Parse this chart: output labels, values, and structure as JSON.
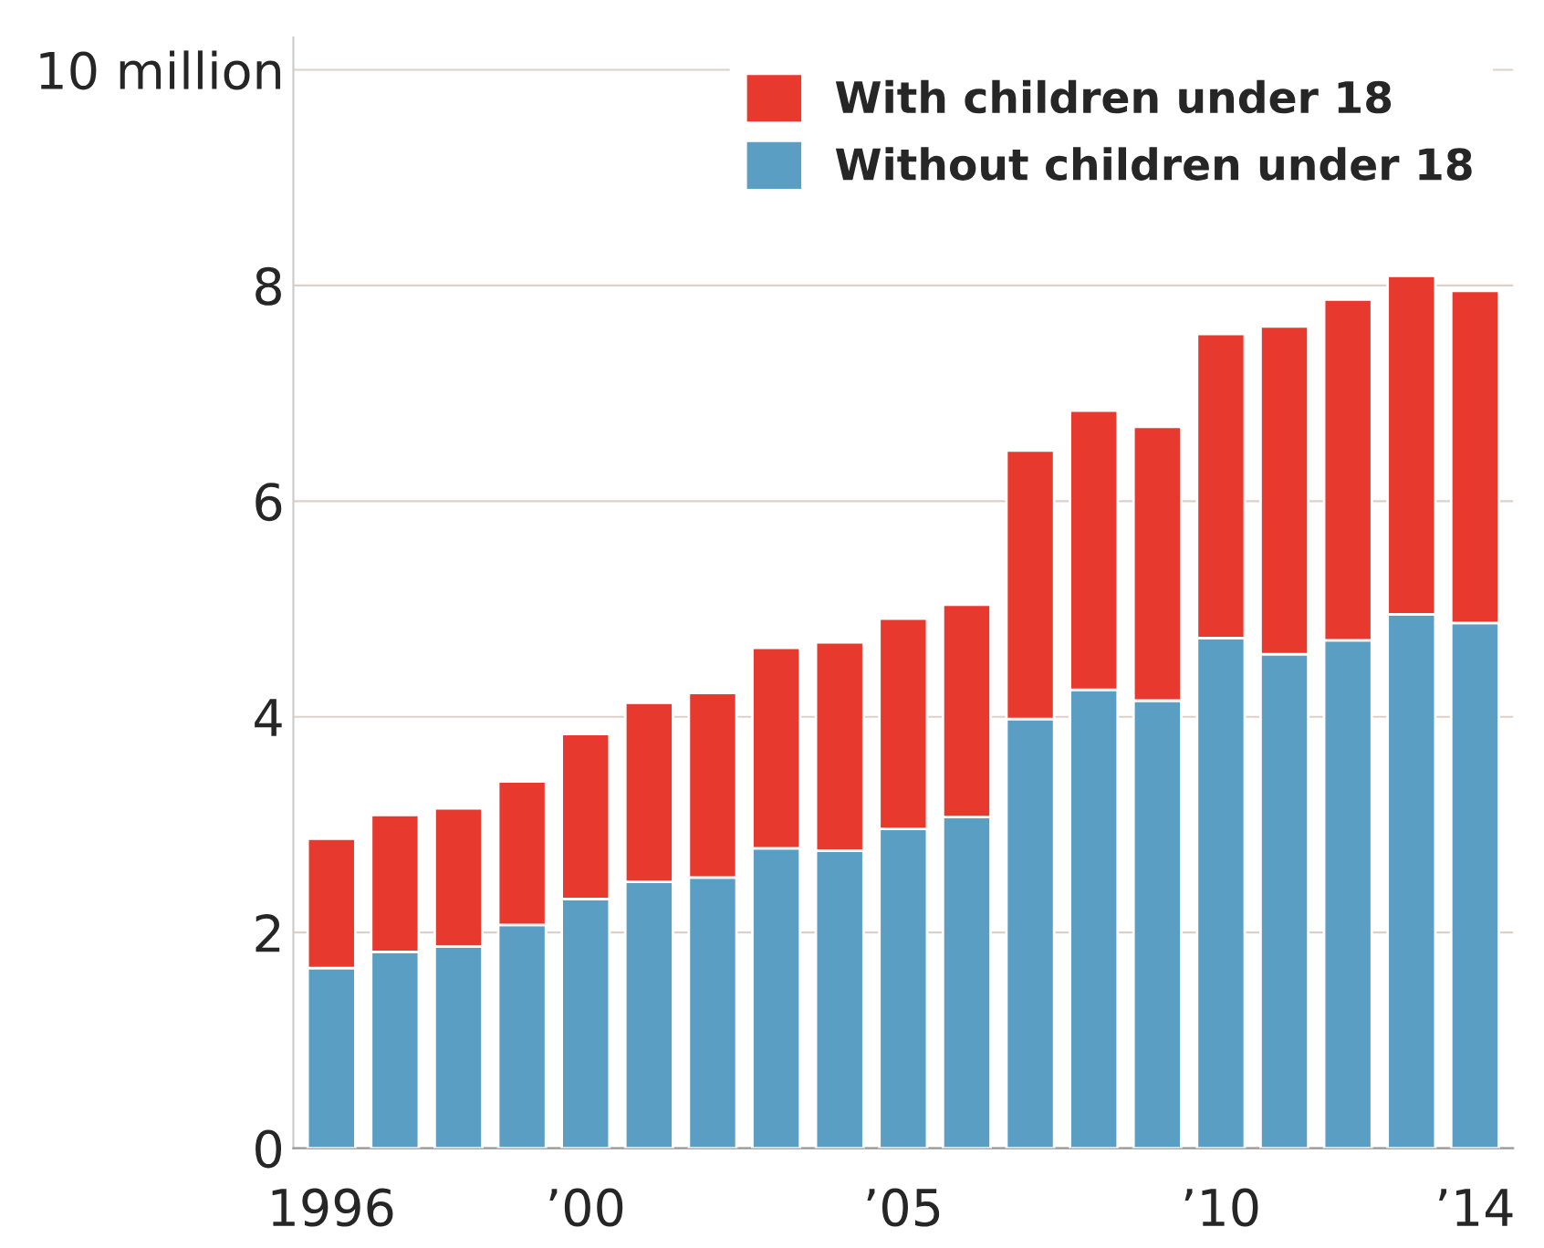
{
  "chart_data": {
    "type": "bar",
    "stacked": true,
    "categories": [
      "1996",
      null,
      null,
      null,
      "’00",
      null,
      null,
      null,
      null,
      "’05",
      null,
      null,
      null,
      null,
      "’10",
      null,
      null,
      null,
      "’14"
    ],
    "series": [
      {
        "name": "Without children under 18",
        "color": "#5a9ec4",
        "values": [
          1.67,
          1.82,
          1.87,
          2.07,
          2.31,
          2.47,
          2.51,
          2.78,
          2.76,
          2.96,
          3.07,
          3.98,
          4.25,
          4.15,
          4.73,
          4.58,
          4.71,
          4.95,
          4.87
        ]
      },
      {
        "name": "With children under 18",
        "color": "#e8392e",
        "values": [
          1.2,
          1.27,
          1.28,
          1.33,
          1.53,
          1.66,
          1.71,
          1.86,
          1.93,
          1.95,
          1.97,
          2.49,
          2.59,
          2.54,
          2.82,
          3.04,
          3.16,
          3.14,
          3.08
        ]
      }
    ],
    "ylim": [
      0,
      10.3
    ],
    "yticks": [
      0,
      2,
      4,
      6,
      8,
      {
        "value": 10,
        "label": "10 million"
      }
    ],
    "grid": "y",
    "legend": "top right"
  }
}
